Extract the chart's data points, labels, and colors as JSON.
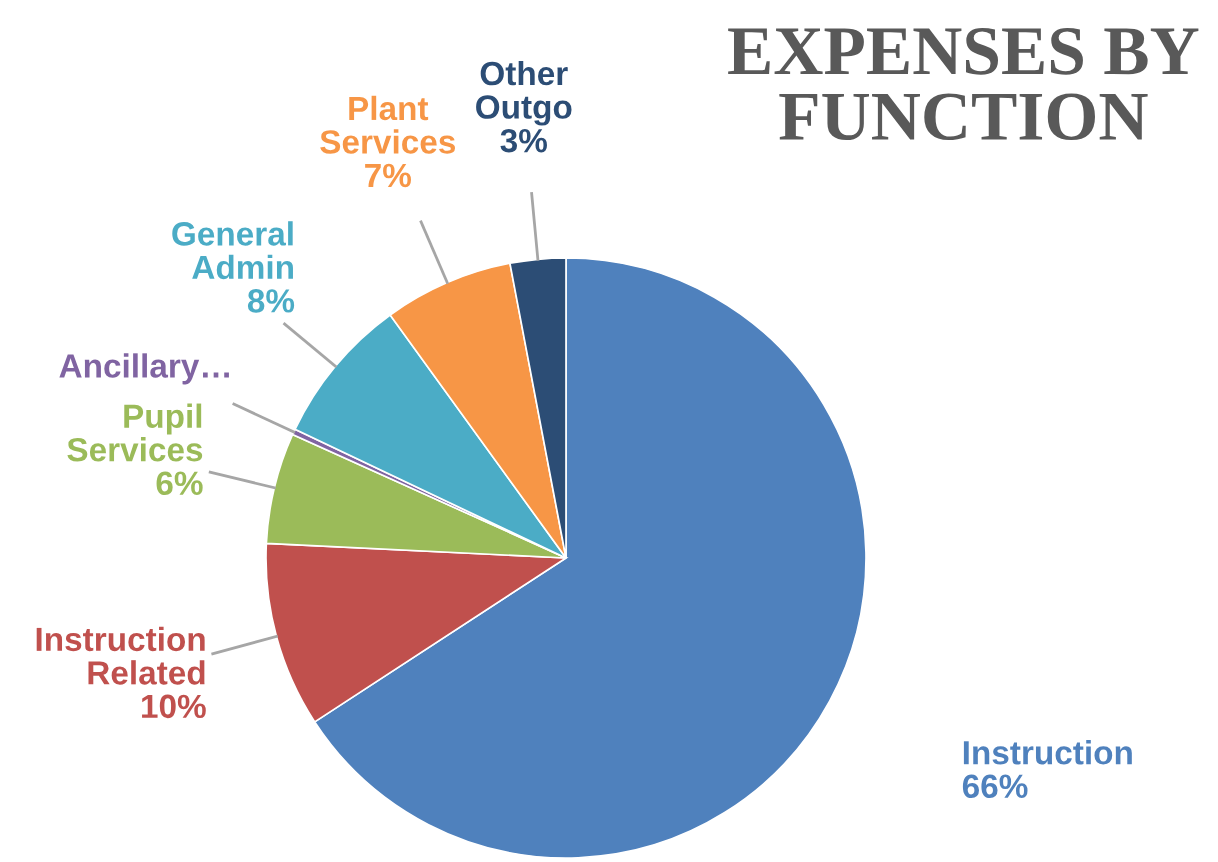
{
  "chart_data": {
    "type": "pie",
    "title": "EXPENSES BY FUNCTION",
    "categories": [
      "Instruction",
      "Instruction Related",
      "Pupil Services",
      "Ancillary…",
      "General Admin",
      "Plant Services",
      "Other Outgo"
    ],
    "values": [
      66,
      10,
      6,
      0.3,
      8,
      7,
      3
    ],
    "value_labels": [
      "66%",
      "10%",
      "6%",
      null,
      "8%",
      "7%",
      "3%"
    ],
    "colors": [
      "#4f81bd",
      "#c0504d",
      "#9bbb59",
      "#8064a2",
      "#4bacc6",
      "#f79646",
      "#2c4d75"
    ],
    "legend": false
  }
}
